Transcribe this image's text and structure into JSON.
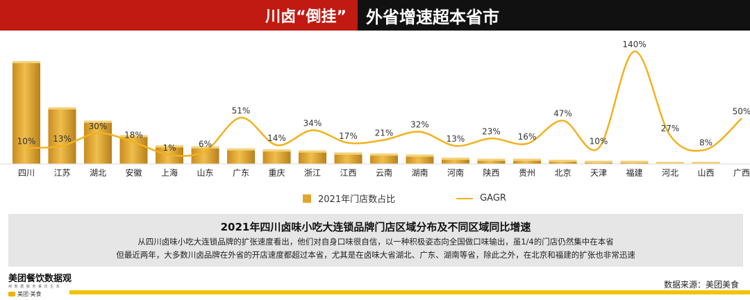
{
  "header": {
    "title_left": "川卤“倒挂”",
    "title_right": "外省增速超本省市"
  },
  "chart_data": {
    "type": "bar+line",
    "categories": [
      "四川",
      "江苏",
      "湖北",
      "安徽",
      "上海",
      "山东",
      "广东",
      "重庆",
      "浙江",
      "江西",
      "云南",
      "湖南",
      "河南",
      "陕西",
      "贵州",
      "北京",
      "天津",
      "福建",
      "河北",
      "山西",
      "广西"
    ],
    "series": [
      {
        "name": "2021年门店数占比",
        "type": "bar",
        "values": [
          100,
          55,
          42,
          28,
          18,
          17,
          15,
          14,
          13,
          11,
          10,
          9,
          6,
          5,
          5,
          4,
          3,
          3,
          2,
          2,
          0
        ]
      },
      {
        "name": "GAGR",
        "type": "line",
        "values": [
          10,
          13,
          30,
          18,
          1,
          6,
          51,
          14,
          34,
          17,
          21,
          32,
          13,
          23,
          16,
          47,
          10,
          140,
          27,
          8,
          50
        ],
        "labels": [
          "10%",
          "13%",
          "30%",
          "18%",
          "1%",
          "6%",
          "51%",
          "14%",
          "34%",
          "17%",
          "21%",
          "32%",
          "13%",
          "23%",
          "16%",
          "47%",
          "10%",
          "140%",
          "27%",
          "8%",
          "50%"
        ]
      }
    ],
    "colors": {
      "bar": "#e0a62d",
      "line": "#f3b11c"
    },
    "grid": false,
    "legend": "bottom"
  },
  "legend": {
    "bar_label": "2021年门店数占比",
    "line_label": "GAGR"
  },
  "info": {
    "title": "2021年四川卤味小吃大连锁品牌门店区域分布及不同区域同比增速",
    "line1": "从四川卤味小吃大连锁品牌的扩张速度看出，他们对自身口味很自信，以一种积极姿态向全国做口味输出，虽1/4的门店仍然集中在本省",
    "line2": "但最近两年，大多数川卤品牌在外省的开店速度都超过本省，尤其是在卤味大省湖北、广东、湖南等省，除此之外，在北京和福建的扩张也非常迅速"
  },
  "brand": {
    "name": "美团餐饮数据观",
    "tagline": "用 数 据 服 务 餐 饮 生 态",
    "sub": "美团·美食"
  },
  "source": "数据来源：美团美食"
}
